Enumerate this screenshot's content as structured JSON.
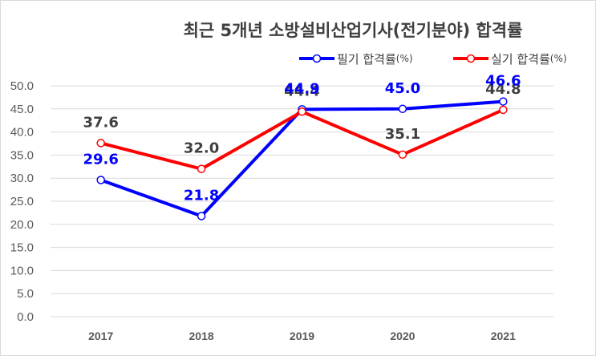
{
  "chart_data": {
    "type": "line",
    "title": "최근 5개년 소방설비산업기사(전기분야) 합격률",
    "categories": [
      "2017",
      "2018",
      "2019",
      "2020",
      "2021"
    ],
    "series": [
      {
        "name": "필기 합격률",
        "unit": "(%)",
        "values": [
          29.6,
          21.8,
          44.9,
          45.0,
          46.6
        ],
        "color": "#0000ff",
        "label_color": "#0000ff"
      },
      {
        "name": "실기 합격률",
        "unit": "(%)",
        "values": [
          37.6,
          32.0,
          44.4,
          35.1,
          44.8
        ],
        "color": "#ff0000",
        "label_color": "#404040"
      }
    ],
    "y_ticks": [
      "0.0",
      "5.0",
      "10.0",
      "15.0",
      "20.0",
      "25.0",
      "30.0",
      "35.0",
      "40.0",
      "45.0",
      "50.0"
    ],
    "ylim": [
      0,
      50
    ],
    "grid": true,
    "legend_position": "top-right"
  }
}
